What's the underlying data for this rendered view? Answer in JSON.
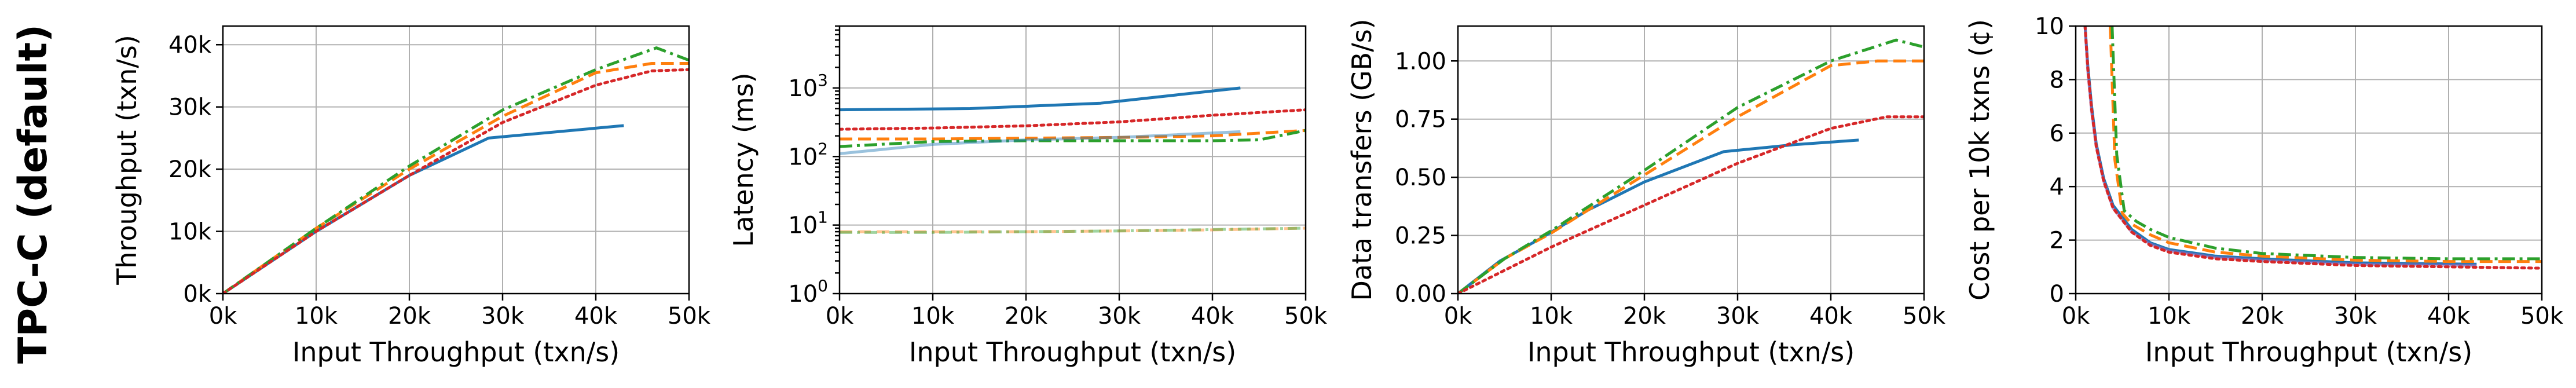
{
  "row_label": "TPC-C (default)",
  "chart_data": [
    {
      "type": "line",
      "xlabel": "Input Throughput (txn/s)",
      "ylabel": "Throughput (txn/s)",
      "xlim": [
        0,
        50000
      ],
      "ylim": [
        0,
        43000
      ],
      "xscale": "linear",
      "yscale": "linear",
      "grid": true,
      "xticks": [
        0,
        10000,
        20000,
        30000,
        40000,
        50000
      ],
      "xtick_labels": [
        "0k",
        "10k",
        "20k",
        "30k",
        "40k",
        "50k"
      ],
      "yticks": [
        0,
        10000,
        20000,
        30000,
        40000
      ],
      "ytick_labels": [
        "0k",
        "10k",
        "20k",
        "30k",
        "40k"
      ],
      "series": [
        {
          "color": "#1f77b4",
          "dash": "solid",
          "opacity": 1,
          "x": [
            0,
            10000,
            20000,
            28500,
            43000
          ],
          "y": [
            0,
            10000,
            19000,
            25000,
            27000
          ]
        },
        {
          "color": "#ff7f0e",
          "dash": "dashed",
          "opacity": 1,
          "x": [
            0,
            10000,
            20000,
            30000,
            40000,
            46000,
            50000
          ],
          "y": [
            0,
            10500,
            20000,
            28500,
            35500,
            37000,
            37000
          ]
        },
        {
          "color": "#2ca02c",
          "dash": "dashdot",
          "opacity": 1,
          "x": [
            0,
            10000,
            20000,
            30000,
            40000,
            46500,
            50000
          ],
          "y": [
            0,
            10500,
            20500,
            29500,
            36000,
            39500,
            37500
          ]
        },
        {
          "color": "#d62728",
          "dash": "dotted",
          "opacity": 1,
          "x": [
            0,
            10000,
            20000,
            30000,
            40000,
            46000,
            50000
          ],
          "y": [
            0,
            10000,
            19000,
            27500,
            33500,
            35800,
            36000
          ]
        }
      ]
    },
    {
      "type": "line",
      "xlabel": "Input Throughput (txn/s)",
      "ylabel": "Latency (ms)",
      "xlim": [
        0,
        50000
      ],
      "ylim": [
        1,
        8000
      ],
      "xscale": "linear",
      "yscale": "log",
      "grid": true,
      "xticks": [
        0,
        10000,
        20000,
        30000,
        40000,
        50000
      ],
      "xtick_labels": [
        "0k",
        "10k",
        "20k",
        "30k",
        "40k",
        "50k"
      ],
      "yticks": [
        1,
        10,
        100,
        1000
      ],
      "ytick_base": "10",
      "ytick_exponents": [
        "0",
        "1",
        "2",
        "3"
      ],
      "series": [
        {
          "color": "#1f77b4",
          "dash": "solid",
          "opacity": 1,
          "x": [
            0,
            14000,
            28000,
            43000
          ],
          "y": [
            480,
            500,
            600,
            1000
          ]
        },
        {
          "color": "#d62728",
          "dash": "dotted",
          "opacity": 1,
          "x": [
            0,
            10000,
            20000,
            30000,
            40000,
            50000
          ],
          "y": [
            250,
            260,
            280,
            320,
            400,
            480
          ]
        },
        {
          "color": "#ff7f0e",
          "dash": "dashed",
          "opacity": 1,
          "x": [
            0,
            10000,
            20000,
            30000,
            40000,
            50000
          ],
          "y": [
            180,
            180,
            185,
            190,
            200,
            240
          ]
        },
        {
          "color": "#2ca02c",
          "dash": "dashdot",
          "opacity": 1,
          "x": [
            0,
            10000,
            20000,
            30000,
            40000,
            45000,
            50000
          ],
          "y": [
            140,
            165,
            170,
            170,
            170,
            175,
            240
          ]
        },
        {
          "color": "#1f77b4",
          "dash": "solid",
          "opacity": 0.45,
          "x": [
            0,
            10000,
            20000,
            30000,
            43000
          ],
          "y": [
            110,
            150,
            175,
            190,
            230
          ]
        },
        {
          "color": "#ff7f0e",
          "dash": "dashed",
          "opacity": 0.45,
          "x": [
            0,
            10000,
            20000,
            30000,
            40000,
            50000
          ],
          "y": [
            8,
            8,
            8,
            8.2,
            8.5,
            9
          ]
        },
        {
          "color": "#2ca02c",
          "dash": "dashdot",
          "opacity": 0.45,
          "x": [
            0,
            10000,
            20000,
            30000,
            40000,
            50000
          ],
          "y": [
            7.8,
            7.8,
            8,
            8.2,
            8.6,
            9
          ]
        }
      ]
    },
    {
      "type": "line",
      "xlabel": "Input Throughput (txn/s)",
      "ylabel": "Data transfers (GB/s)",
      "xlim": [
        0,
        50000
      ],
      "ylim": [
        0,
        1.15
      ],
      "xscale": "linear",
      "yscale": "linear",
      "grid": true,
      "xticks": [
        0,
        10000,
        20000,
        30000,
        40000,
        50000
      ],
      "xtick_labels": [
        "0k",
        "10k",
        "20k",
        "30k",
        "40k",
        "50k"
      ],
      "yticks": [
        0,
        0.25,
        0.5,
        0.75,
        1.0
      ],
      "ytick_labels": [
        "0.00",
        "0.25",
        "0.50",
        "0.75",
        "1.00"
      ],
      "series": [
        {
          "color": "#1f77b4",
          "dash": "solid",
          "opacity": 1,
          "x": [
            0,
            4500,
            9000,
            14000,
            20000,
            28500,
            36000,
            43000
          ],
          "y": [
            0,
            0.14,
            0.24,
            0.36,
            0.48,
            0.61,
            0.64,
            0.66
          ]
        },
        {
          "color": "#ff7f0e",
          "dash": "dashed",
          "opacity": 1,
          "x": [
            0,
            5000,
            10000,
            20000,
            30000,
            40000,
            45000,
            50000
          ],
          "y": [
            0,
            0.15,
            0.26,
            0.51,
            0.76,
            0.98,
            1.0,
            1.0
          ]
        },
        {
          "color": "#2ca02c",
          "dash": "dashdot",
          "opacity": 1,
          "x": [
            0,
            5000,
            10000,
            20000,
            30000,
            40000,
            47000,
            50000
          ],
          "y": [
            0,
            0.15,
            0.27,
            0.53,
            0.8,
            1.0,
            1.09,
            1.06
          ]
        },
        {
          "color": "#d62728",
          "dash": "dotted",
          "opacity": 1,
          "x": [
            0,
            5000,
            10000,
            20000,
            30000,
            40000,
            46000,
            50000
          ],
          "y": [
            0,
            0.1,
            0.2,
            0.38,
            0.56,
            0.71,
            0.76,
            0.76
          ]
        }
      ]
    },
    {
      "type": "line",
      "xlabel": "Input Throughput (txn/s)",
      "ylabel": "Cost per 10k txns (¢)",
      "xlim": [
        0,
        50000
      ],
      "ylim": [
        0,
        10
      ],
      "xscale": "linear",
      "yscale": "linear",
      "grid": true,
      "xticks": [
        0,
        10000,
        20000,
        30000,
        40000,
        50000
      ],
      "xtick_labels": [
        "0k",
        "10k",
        "20k",
        "30k",
        "40k",
        "50k"
      ],
      "yticks": [
        0,
        2,
        4,
        6,
        8,
        10
      ],
      "ytick_labels": [
        "0",
        "2",
        "4",
        "6",
        "8",
        "10"
      ],
      "series": [
        {
          "color": "#1f77b4",
          "dash": "solid",
          "opacity": 1,
          "x": [
            1000,
            1300,
            1700,
            2200,
            3000,
            4000,
            6000,
            8000,
            10000,
            15000,
            20000,
            30000,
            43000
          ],
          "y": [
            10,
            8.5,
            7,
            5.6,
            4.3,
            3.3,
            2.4,
            1.9,
            1.65,
            1.4,
            1.3,
            1.15,
            1.1
          ]
        },
        {
          "color": "#9467bd",
          "dash": "solid",
          "opacity": 0.6,
          "x": [
            1000,
            1300,
            1700,
            2200,
            3000,
            4000,
            6000,
            8000,
            10000,
            15000,
            20000,
            30000,
            43000
          ],
          "y": [
            10,
            8.3,
            6.8,
            5.5,
            4.2,
            3.2,
            2.3,
            1.85,
            1.6,
            1.35,
            1.25,
            1.1,
            1.05
          ]
        },
        {
          "color": "#ff7f0e",
          "dash": "dashed",
          "opacity": 1,
          "x": [
            3700,
            4200,
            5000,
            6000,
            8000,
            10000,
            15000,
            20000,
            30000,
            40000,
            50000
          ],
          "y": [
            10,
            5,
            3.0,
            2.6,
            2.2,
            1.9,
            1.55,
            1.4,
            1.25,
            1.2,
            1.2
          ]
        },
        {
          "color": "#2ca02c",
          "dash": "dashdot",
          "opacity": 1,
          "x": [
            3900,
            4400,
            5200,
            6500,
            8000,
            10000,
            15000,
            20000,
            30000,
            40000,
            50000
          ],
          "y": [
            10,
            5.2,
            3.1,
            2.7,
            2.4,
            2.1,
            1.7,
            1.5,
            1.35,
            1.3,
            1.3
          ]
        },
        {
          "color": "#d62728",
          "dash": "dotted",
          "opacity": 1,
          "x": [
            1000,
            1300,
            1700,
            2200,
            3000,
            4000,
            6000,
            8000,
            10000,
            15000,
            20000,
            30000,
            40000,
            50000
          ],
          "y": [
            10,
            8.4,
            6.9,
            5.5,
            4.2,
            3.2,
            2.3,
            1.8,
            1.55,
            1.3,
            1.2,
            1.05,
            1.0,
            0.95
          ]
        }
      ]
    }
  ]
}
